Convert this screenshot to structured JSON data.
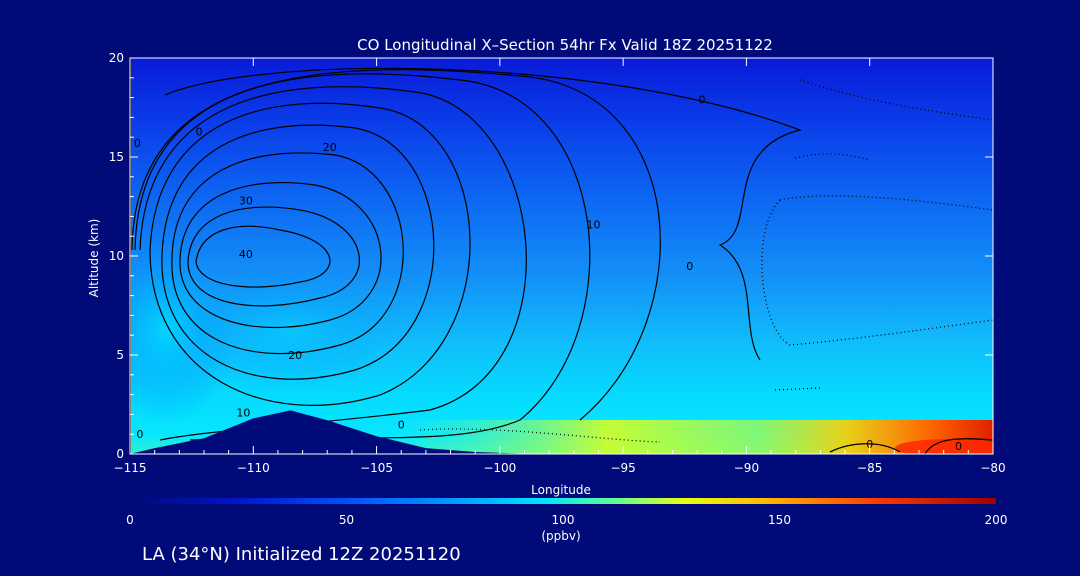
{
  "chart_data": {
    "type": "heatmap",
    "title": "CO Longitudinal X–Section 54hr  Fx Valid 18Z 20251122",
    "xlabel": "Longitude",
    "ylabel": "Altitude (km)",
    "xlim": [
      -115,
      -80
    ],
    "ylim": [
      0,
      20
    ],
    "x_ticks": [
      -115,
      -110,
      -105,
      -100,
      -95,
      -90,
      -85,
      -80
    ],
    "x_tick_labels": [
      "−115",
      "−110",
      "−105",
      "−100",
      "−95",
      "−90",
      "−85",
      "−80"
    ],
    "y_ticks": [
      0,
      5,
      10,
      15,
      20
    ],
    "y_tick_labels": [
      "0",
      "5",
      "10",
      "15",
      "20"
    ],
    "colorbar": {
      "min": 0,
      "max": 200,
      "ticks": [
        0,
        50,
        100,
        150,
        200
      ],
      "tick_labels": [
        "0",
        "50",
        "100",
        "150",
        "200"
      ],
      "unit": "(ppbv)"
    },
    "contour_labels": [
      {
        "text": "0",
        "lon": -114.7,
        "alt": 15.7
      },
      {
        "text": "0",
        "lon": -112.2,
        "alt": 16.3
      },
      {
        "text": "0",
        "lon": -91.8,
        "alt": 17.9
      },
      {
        "text": "0",
        "lon": -92.3,
        "alt": 9.5
      },
      {
        "text": "0",
        "lon": -104,
        "alt": 1.5
      },
      {
        "text": "0",
        "lon": -85,
        "alt": 0.5
      },
      {
        "text": "0",
        "lon": -81.4,
        "alt": 0.4
      },
      {
        "text": "0",
        "lon": -114.6,
        "alt": 1.0
      },
      {
        "text": "10",
        "lon": -96.2,
        "alt": 11.6
      },
      {
        "text": "10",
        "lon": -110.4,
        "alt": 2.1
      },
      {
        "text": "20",
        "lon": -106.9,
        "alt": 15.5
      },
      {
        "text": "20",
        "lon": -108.3,
        "alt": 5.0
      },
      {
        "text": "30",
        "lon": -110.3,
        "alt": 12.8
      },
      {
        "text": "40",
        "lon": -110.3,
        "alt": 10.1
      }
    ],
    "terrain": [
      [
        -115,
        0
      ],
      [
        -114,
        0.3
      ],
      [
        -112,
        0.8
      ],
      [
        -110,
        1.8
      ],
      [
        -108.5,
        2.2
      ],
      [
        -107,
        1.7
      ],
      [
        -105,
        0.9
      ],
      [
        -103,
        0.3
      ],
      [
        -101,
        0.1
      ],
      [
        -99,
        0.02
      ],
      [
        -80,
        0.02
      ]
    ],
    "footer": "LA (34°N) Initialized 12Z 20251120"
  }
}
